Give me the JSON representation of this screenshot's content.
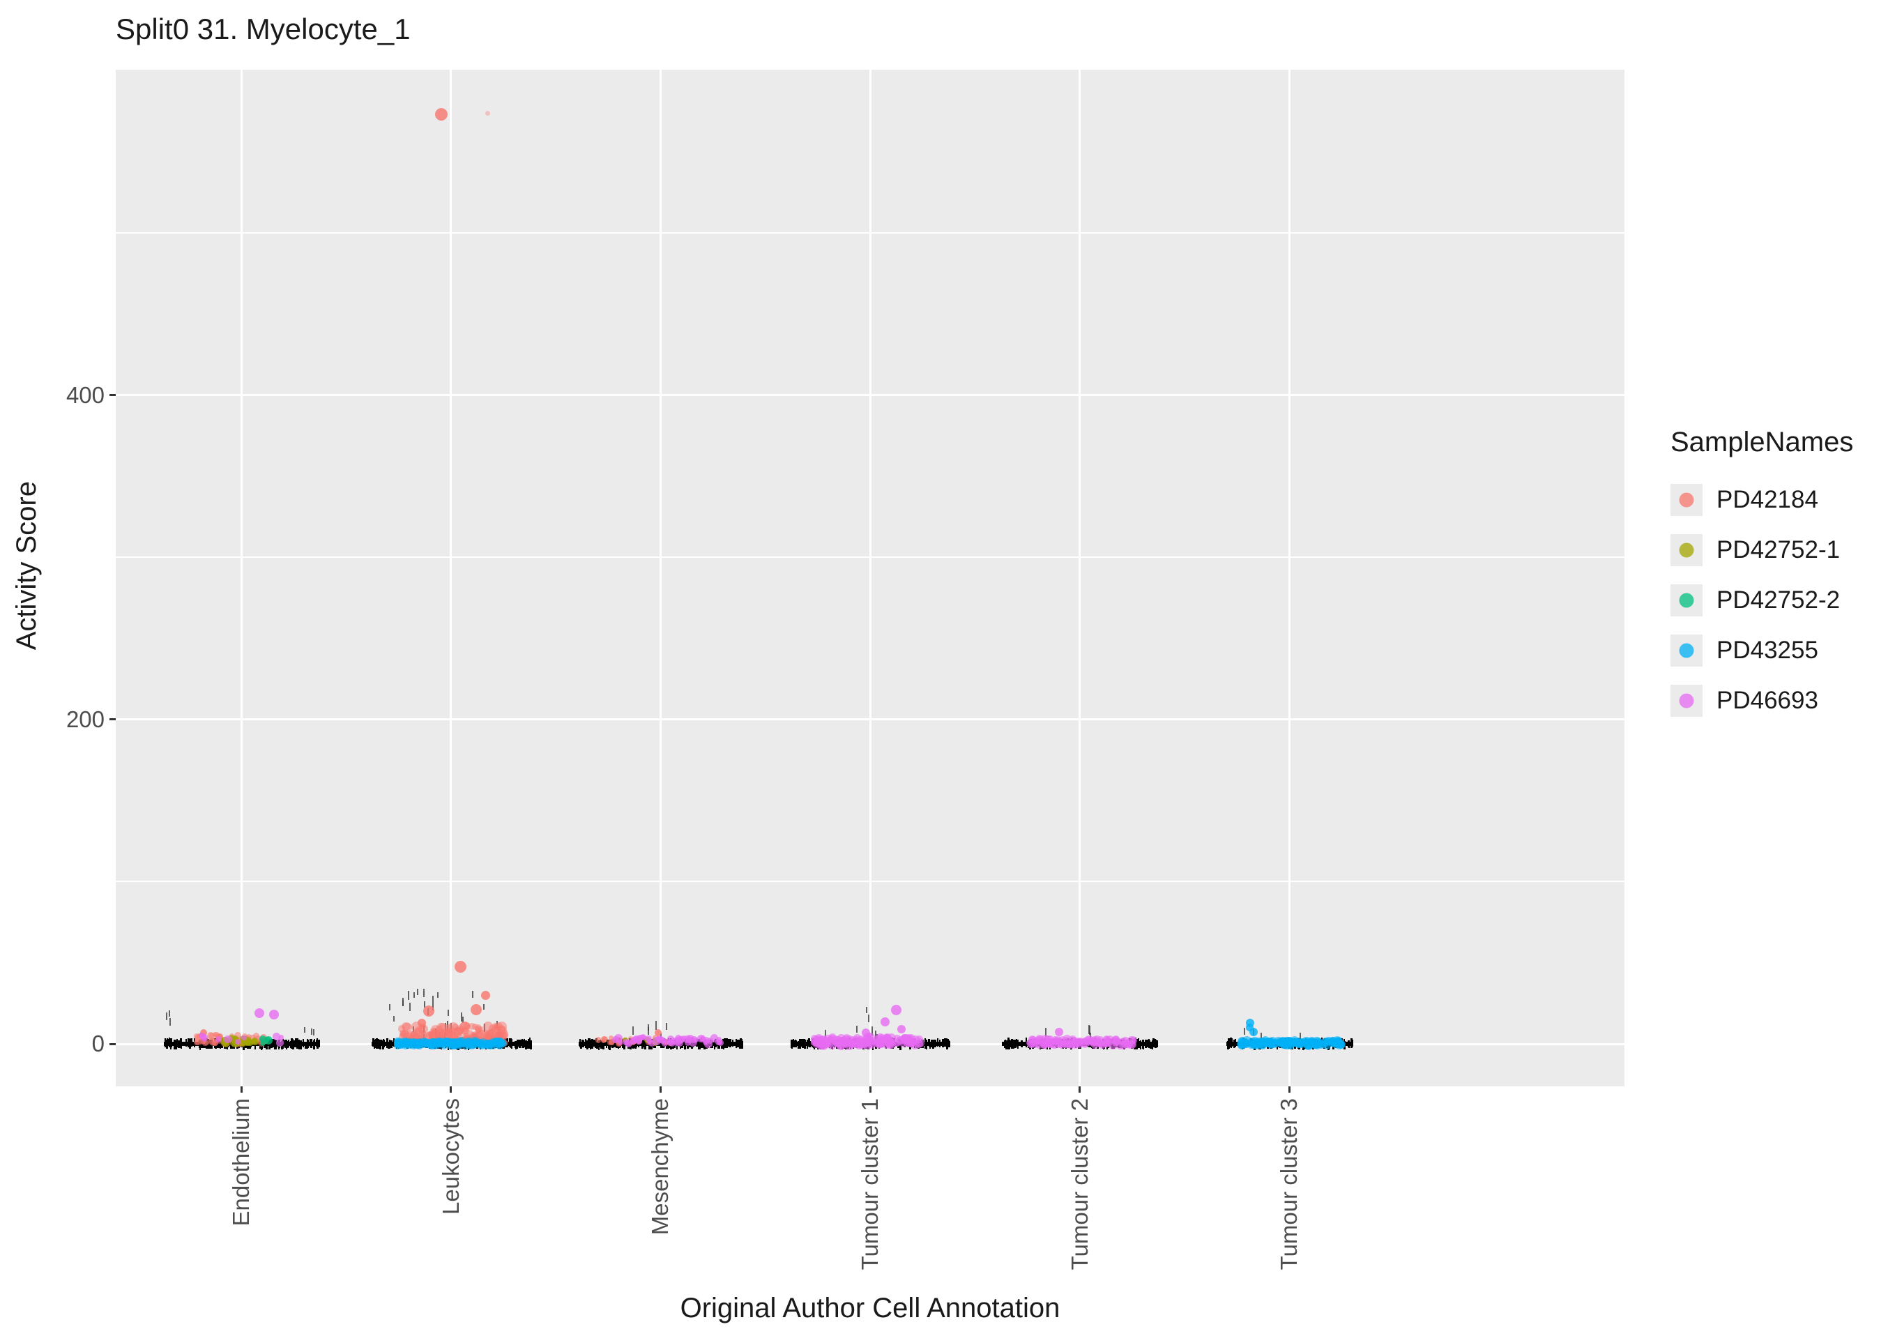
{
  "title": "Split0 31. Myelocyte_1",
  "axes": {
    "x_title": "Original Author Cell Annotation",
    "y_title": "Activity Score"
  },
  "legend": {
    "title": "SampleNames",
    "items": [
      {
        "label": "PD42184",
        "color": "#F8766D"
      },
      {
        "label": "PD42752-1",
        "color": "#A3A500"
      },
      {
        "label": "PD42752-2",
        "color": "#00BF7D"
      },
      {
        "label": "PD43255",
        "color": "#00B0F6"
      },
      {
        "label": "PD46693",
        "color": "#E76BF3"
      }
    ]
  },
  "colors": {
    "panel_bg": "#EBEBEB",
    "grid": "#FFFFFF",
    "tick_text": "#4D4D4D",
    "axis_text": "#1A1A1A",
    "rug": "#000000"
  },
  "chart_data": {
    "type": "scatter",
    "title": "Split0 31. Myelocyte_1",
    "xlabel": "Original Author Cell Annotation",
    "ylabel": "Activity Score",
    "categories": [
      "Endothelium",
      "Leukocytes",
      "Mesenchyme",
      "Tumour cluster 1",
      "Tumour cluster 2",
      "Tumour cluster 3"
    ],
    "y_ticks": [
      0,
      200,
      400
    ],
    "y_minor_ticks": [
      100,
      300,
      500
    ],
    "ylim": [
      -25,
      600
    ],
    "legend_position": "right",
    "description": "Jittered activity scores per cell annotation; nearly all points at ~0 (black rug of overplotted points), colored jitter by sample; one extreme PD42184 outlier ~573 in Leukocytes.",
    "series": [
      {
        "name": "PD42184",
        "color": "#F8766D",
        "clusters": [
          {
            "cat": 0,
            "n": 50,
            "dx": [
              -0.22,
              0.12
            ],
            "y": [
              0,
              6
            ],
            "r": [
              3.5,
              5.5
            ],
            "alpha": 0.55
          },
          {
            "cat": 1,
            "n": 150,
            "dx": [
              -0.24,
              0.26
            ],
            "y": [
              0,
              11
            ],
            "r": [
              4,
              7.5
            ],
            "alpha": 0.5
          },
          {
            "cat": 2,
            "n": 30,
            "dx": [
              -0.3,
              0.08
            ],
            "y": [
              0,
              4
            ],
            "r": [
              3.5,
              5
            ],
            "alpha": 0.6
          }
        ],
        "points": [
          {
            "cat": 1,
            "dx": -0.045,
            "y": 573,
            "r": 9
          },
          {
            "cat": 1,
            "dx": 0.176,
            "y": 574,
            "r": 3.5,
            "alpha": 0.35
          },
          {
            "cat": 1,
            "dx": 0.045,
            "y": 47.5,
            "r": 8.5
          },
          {
            "cat": 1,
            "dx": -0.105,
            "y": 20,
            "r": 8
          },
          {
            "cat": 1,
            "dx": 0.12,
            "y": 21,
            "r": 8
          },
          {
            "cat": 1,
            "dx": 0.166,
            "y": 30,
            "r": 6.5
          },
          {
            "cat": 1,
            "dx": -0.14,
            "y": 13,
            "r": 6
          },
          {
            "cat": 0,
            "dx": -0.18,
            "y": 7,
            "r": 5
          },
          {
            "cat": 2,
            "dx": -0.01,
            "y": 7,
            "r": 5
          }
        ]
      },
      {
        "name": "PD42752-1",
        "color": "#A3A500",
        "clusters": [
          {
            "cat": 0,
            "n": 14,
            "dx": [
              -0.08,
              0.1
            ],
            "y": [
              0,
              4
            ],
            "r": [
              3.5,
              6.5
            ],
            "alpha": 0.8
          },
          {
            "cat": 2,
            "n": 5,
            "dx": [
              -0.18,
              -0.02
            ],
            "y": [
              0,
              3
            ],
            "r": [
              3,
              4.5
            ],
            "alpha": 0.8
          }
        ],
        "points": [
          {
            "cat": 0,
            "dx": -0.03,
            "y": 1,
            "r": 7.5
          }
        ]
      },
      {
        "name": "PD42752-2",
        "color": "#00BF7D",
        "clusters": [
          {
            "cat": 0,
            "n": 3,
            "dx": [
              0.1,
              0.16
            ],
            "y": [
              0,
              3
            ],
            "r": [
              3.5,
              5
            ],
            "alpha": 0.8
          }
        ],
        "points": [
          {
            "cat": 0,
            "dx": 0.13,
            "y": 2,
            "r": 6
          }
        ]
      },
      {
        "name": "PD43255",
        "color": "#00B0F6",
        "clusters": [
          {
            "cat": 1,
            "n": 170,
            "dx": [
              -0.26,
              0.25
            ],
            "y": [
              -1,
              1.5
            ],
            "r": [
              5,
              6.5
            ],
            "alpha": 0.55
          },
          {
            "cat": 5,
            "n": 150,
            "dx": [
              -0.23,
              0.25
            ],
            "y": [
              -1,
              2
            ],
            "r": [
              5,
              6.5
            ],
            "alpha": 0.6
          }
        ],
        "points": [
          {
            "cat": 5,
            "dx": -0.186,
            "y": 13,
            "r": 6
          },
          {
            "cat": 5,
            "dx": -0.17,
            "y": 7.5,
            "r": 6
          },
          {
            "cat": 5,
            "dx": -0.19,
            "y": 10,
            "r": 5.5
          }
        ]
      },
      {
        "name": "PD46693",
        "color": "#E76BF3",
        "clusters": [
          {
            "cat": 0,
            "n": 10,
            "dx": [
              -0.22,
              0.2
            ],
            "y": [
              0,
              6
            ],
            "r": [
              3.5,
              6
            ],
            "alpha": 0.7
          },
          {
            "cat": 2,
            "n": 55,
            "dx": [
              -0.22,
              0.3
            ],
            "y": [
              0,
              4
            ],
            "r": [
              3.5,
              6
            ],
            "alpha": 0.7
          },
          {
            "cat": 3,
            "n": 150,
            "dx": [
              -0.27,
              0.25
            ],
            "y": [
              -1,
              4
            ],
            "r": [
              4.5,
              7
            ],
            "alpha": 0.6
          },
          {
            "cat": 4,
            "n": 120,
            "dx": [
              -0.24,
              0.26
            ],
            "y": [
              -1,
              3
            ],
            "r": [
              4.5,
              6.5
            ],
            "alpha": 0.6
          }
        ],
        "points": [
          {
            "cat": 0,
            "dx": 0.085,
            "y": 19,
            "r": 7
          },
          {
            "cat": 0,
            "dx": 0.156,
            "y": 18,
            "r": 7
          },
          {
            "cat": 3,
            "dx": 0.125,
            "y": 21,
            "r": 7.5
          },
          {
            "cat": 3,
            "dx": 0.07,
            "y": 13.5,
            "r": 6.5
          },
          {
            "cat": 3,
            "dx": 0.15,
            "y": 9,
            "r": 6
          },
          {
            "cat": 3,
            "dx": -0.02,
            "y": 7,
            "r": 6
          },
          {
            "cat": 4,
            "dx": -0.1,
            "y": 7.5,
            "r": 6
          }
        ]
      }
    ],
    "baseline_rug": [
      {
        "cat": 0,
        "half": 0.37
      },
      {
        "cat": 1,
        "half": 0.38
      },
      {
        "cat": 2,
        "half": 0.39
      },
      {
        "cat": 3,
        "half": 0.38
      },
      {
        "cat": 4,
        "half": 0.37
      },
      {
        "cat": 5,
        "half": 0.3
      }
    ],
    "whisker_marks": [
      {
        "cat": 0,
        "dx": [
          -0.36,
          -0.33
        ],
        "y": [
          10,
          19
        ],
        "n": 3
      },
      {
        "cat": 0,
        "dx": [
          0.3,
          0.35
        ],
        "y": [
          6,
          13
        ],
        "n": 3
      },
      {
        "cat": 1,
        "dx": [
          -0.3,
          0.3
        ],
        "y": [
          4,
          34
        ],
        "n": 30
      },
      {
        "cat": 2,
        "dx": [
          -0.2,
          0.22
        ],
        "y": [
          3,
          12
        ],
        "n": 6
      },
      {
        "cat": 3,
        "dx": [
          -0.02,
          0.02
        ],
        "y": [
          15,
          22
        ],
        "n": 2
      },
      {
        "cat": 3,
        "dx": [
          -0.25,
          0.2
        ],
        "y": [
          3,
          9
        ],
        "n": 5
      },
      {
        "cat": 4,
        "dx": [
          -0.18,
          0.12
        ],
        "y": [
          3,
          9
        ],
        "n": 4
      },
      {
        "cat": 5,
        "dx": [
          -0.22,
          0.12
        ],
        "y": [
          3,
          8
        ],
        "n": 4
      }
    ]
  }
}
